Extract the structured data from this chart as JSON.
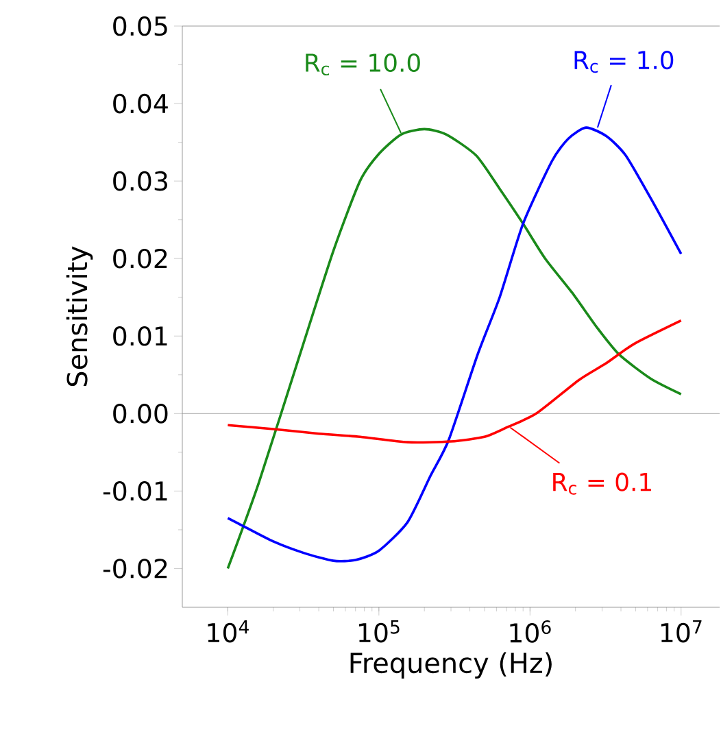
{
  "chart_data": {
    "type": "line",
    "xlabel": "Frequency (Hz)",
    "ylabel": "Sensitivity",
    "log": "x",
    "xlim": [
      5000,
      18000000
    ],
    "ylim": [
      -0.025,
      0.05
    ],
    "xticks": [
      {
        "value": 10000,
        "label": "10$^{4}$"
      },
      {
        "value": 100000,
        "label": "10$^{5}$"
      },
      {
        "value": 1000000,
        "label": "10$^{6}$"
      },
      {
        "value": 10000000,
        "label": "10$^{7}$"
      }
    ],
    "yticks": [
      {
        "value": -0.02,
        "label": "-0.02"
      },
      {
        "value": -0.01,
        "label": "-0.01"
      },
      {
        "value": 0,
        "label": "0.00"
      },
      0.01,
      0.02,
      0.03,
      0.04,
      0.05
    ],
    "marker": "none",
    "line_style": "solid",
    "ref_lines": [
      {
        "axis": "y",
        "value": 0,
        "color": "#999999"
      }
    ],
    "series": [
      {
        "color": "#1a8a1a",
        "x": [
          10000,
          16000,
          30000,
          50000,
          75000,
          100000,
          140000,
          200000,
          280000,
          440000,
          630000,
          900000,
          1260000,
          1900000,
          2800000,
          3900000,
          6300000,
          10000000
        ],
        "values": [
          -0.02,
          -0.009,
          0.0076,
          0.021,
          0.03,
          0.0335,
          0.036,
          0.0367,
          0.036,
          0.0333,
          0.029,
          0.0245,
          0.02,
          0.0156,
          0.011,
          0.0076,
          0.0045,
          0.0025
        ]
      },
      {
        "color": "#0000ff",
        "x": [
          10000,
          12600,
          20000,
          32000,
          50000,
          70000,
          100000,
          155000,
          220000,
          290000,
          450000,
          630000,
          900000,
          1400000,
          1800000,
          2350000,
          3200000,
          4300000,
          6500000,
          10000000
        ],
        "values": [
          -0.0135,
          -0.0145,
          -0.0165,
          -0.018,
          -0.019,
          -0.0189,
          -0.0177,
          -0.014,
          -0.008,
          -0.0034,
          0.0076,
          0.015,
          0.0245,
          0.0326,
          0.0355,
          0.0369,
          0.0358,
          0.0333,
          0.0273,
          0.0206
        ]
      },
      {
        "color": "#ff0000",
        "x": [
          10000,
          20000,
          40000,
          75000,
          155000,
          300000,
          500000,
          700000,
          1100000,
          2100000,
          3200000,
          4900000,
          10000000
        ],
        "values": [
          -0.0015,
          -0.002,
          -0.0026,
          -0.003,
          -0.0037,
          -0.0036,
          -0.003,
          -0.0018,
          0,
          0.0043,
          0.0065,
          0.009,
          0.012
        ]
      }
    ],
    "annotations": [
      {
        "text": "R$_{c}$ = 10.0",
        "x": 140000,
        "y": 0.0362
      },
      {
        "text": "R$_{c}$ = 1.0",
        "x": 2800000,
        "y": 0.0369
      },
      {
        "text": "R$_{c}$ = 0.1",
        "x": 740000,
        "y": -0.0018
      }
    ]
  }
}
